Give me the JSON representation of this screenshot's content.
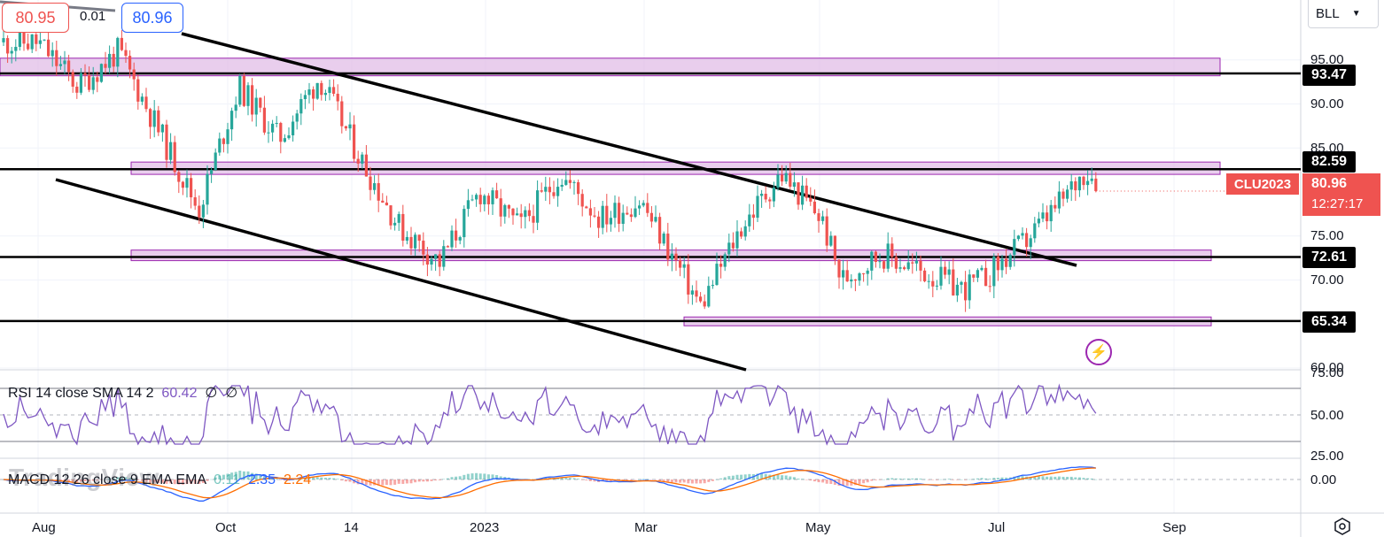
{
  "header": {
    "sell_price": "80.95",
    "spread": "0.01",
    "buy_price": "80.96",
    "symbol_select": "BLL"
  },
  "rsi_legend": {
    "label": "RSI 14 close SMA 14 2",
    "value": "60.42",
    "extra": "∅  ∅"
  },
  "macd_legend": {
    "label": "MACD 12 26 close 9 EMA EMA",
    "hist": "0.11",
    "macd": "2.35",
    "signal": "2.24"
  },
  "watermark": "TradingView",
  "current": {
    "symbol": "CLU2023",
    "price": "80.96",
    "countdown": "12:27:17"
  },
  "levels": [
    {
      "value": 93.47,
      "label": "93.47"
    },
    {
      "value": 82.59,
      "label": "82.59"
    },
    {
      "value": 72.61,
      "label": "72.61"
    },
    {
      "value": 65.34,
      "label": "65.34"
    }
  ],
  "colors": {
    "up": "#26a69a",
    "down": "#ef5350",
    "zone": "#e1bee7",
    "rsi": "#7e57c2",
    "macd": "#2962ff",
    "signal": "#ff6d00"
  },
  "chart_data": {
    "type": "candlestick",
    "price_axis": {
      "ticks": [
        "95.00",
        "90.00",
        "85.00",
        "75.00",
        "70.00",
        "60.00"
      ]
    },
    "rsi_axis": {
      "ticks": [
        "75.00",
        "50.00",
        "25.00"
      ]
    },
    "macd_axis": {
      "ticks": [
        "0.00"
      ]
    },
    "x_ticks": [
      "Aug",
      "Oct",
      "14",
      "2023",
      "Mar",
      "May",
      "Jul",
      "Sep"
    ],
    "close_path": [
      [
        "2022-08-01",
        97
      ],
      [
        "2022-08-15",
        92
      ],
      [
        "2022-08-29",
        96
      ],
      [
        "2022-09-12",
        87
      ],
      [
        "2022-09-26",
        78
      ],
      [
        "2022-10-10",
        92
      ],
      [
        "2022-10-24",
        86
      ],
      [
        "2022-11-07",
        93
      ],
      [
        "2022-11-21",
        84
      ],
      [
        "2022-12-05",
        76
      ],
      [
        "2022-12-19",
        72
      ],
      [
        "2023-01-02",
        80
      ],
      [
        "2023-01-16",
        76
      ],
      [
        "2023-01-30",
        82
      ],
      [
        "2023-02-13",
        77
      ],
      [
        "2023-02-27",
        79
      ],
      [
        "2023-03-13",
        71
      ],
      [
        "2023-03-20",
        67
      ],
      [
        "2023-04-03",
        76
      ],
      [
        "2023-04-17",
        82
      ],
      [
        "2023-05-01",
        77
      ],
      [
        "2023-05-08",
        70
      ],
      [
        "2023-05-22",
        73
      ],
      [
        "2023-06-05",
        71
      ],
      [
        "2023-06-19",
        69
      ],
      [
        "2023-06-26",
        70
      ],
      [
        "2023-07-10",
        74
      ],
      [
        "2023-07-24",
        79
      ],
      [
        "2023-08-01",
        82.5
      ],
      [
        "2023-08-07",
        80.96
      ]
    ],
    "rsi_current": 60.42,
    "macd_current": {
      "macd": 2.35,
      "signal": 2.24,
      "hist": 0.11
    }
  }
}
